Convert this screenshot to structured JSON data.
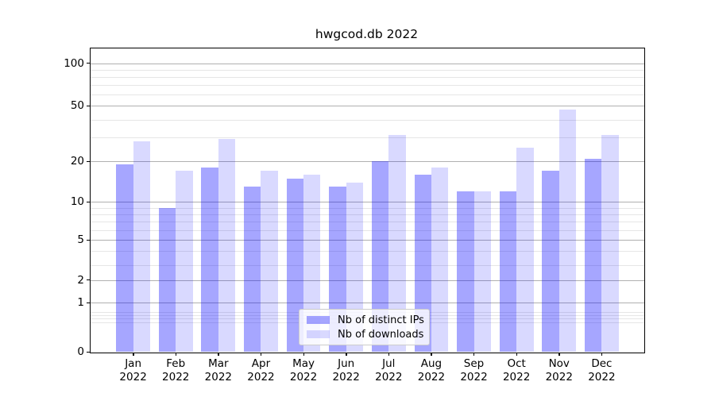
{
  "title": "hwgcod.db 2022",
  "chart_data": {
    "type": "bar",
    "title": "hwgcod.db 2022",
    "categories": [
      "Jan 2022",
      "Feb 2022",
      "Mar 2022",
      "Apr 2022",
      "May 2022",
      "Jun 2022",
      "Jul 2022",
      "Aug 2022",
      "Sep 2022",
      "Oct 2022",
      "Nov 2022",
      "Dec 2022"
    ],
    "series": [
      {
        "name": "Nb of distinct IPs",
        "values": [
          19,
          9,
          18,
          13,
          15,
          13,
          20,
          16,
          12,
          12,
          17,
          21
        ],
        "color": "rgba(0,0,255,0.35)"
      },
      {
        "name": "Nb of downloads",
        "values": [
          28,
          17,
          29,
          17,
          16,
          14,
          31,
          18,
          12,
          25,
          47,
          31
        ],
        "color": "rgba(0,0,255,0.15)"
      }
    ],
    "xlabel": "",
    "ylabel": "",
    "yscale": "symlog-like (log of 1+value, 0 shown at axis bottom)",
    "ylim": [
      0,
      128
    ],
    "yticks_major": [
      100,
      50,
      20,
      10,
      5,
      2,
      1,
      0
    ],
    "yticks_minor": [
      0.6,
      0.7,
      0.8,
      0.9,
      3,
      4,
      6,
      7,
      8,
      9,
      30,
      40,
      60,
      70,
      80,
      90
    ],
    "grid": "both horizontal (major gray, minor very light)",
    "legend": {
      "position": "lower center",
      "labels": [
        "Nb of distinct IPs",
        "Nb of downloads"
      ]
    }
  },
  "colors": {
    "bar_distinct_ips": "rgba(0,0,255,0.35)",
    "bar_downloads": "rgba(0,0,255,0.15)",
    "grid_major": "#b0b0b0",
    "grid_minor": "#e6e6e6",
    "axis_border": "#000000",
    "legend_border": "#cccccc"
  }
}
